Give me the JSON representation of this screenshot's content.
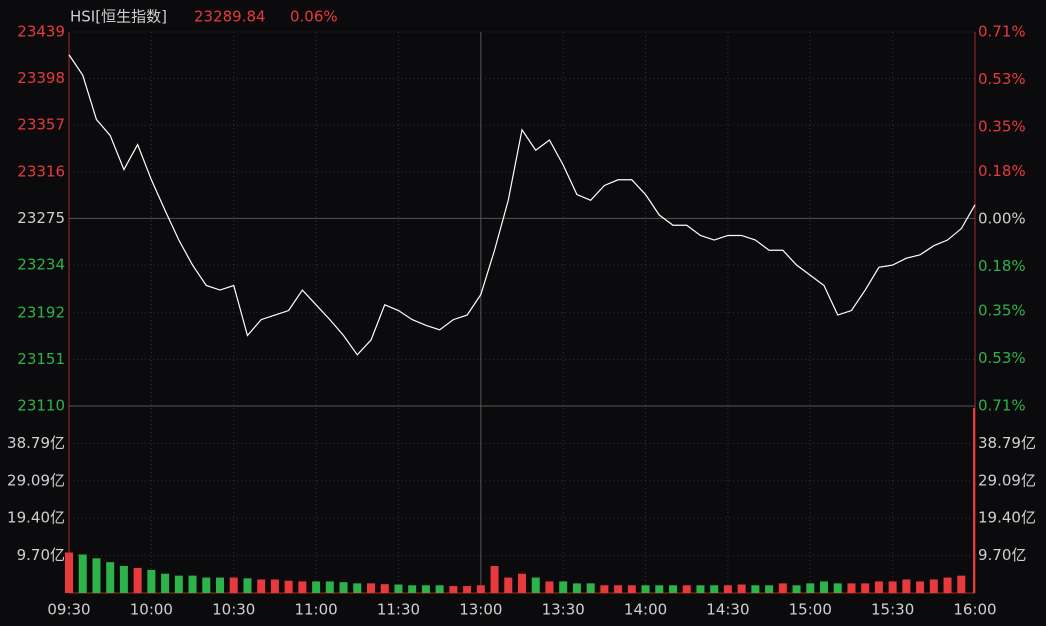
{
  "header": {
    "title": "HSI[恒生指数]",
    "price": 23289.84,
    "change": {
      "value": 0.06,
      "label": "0.06%"
    }
  },
  "chart_data": [
    {
      "type": "line",
      "color": "#ffffff",
      "up_color": "#e8393c",
      "down_color": "#2db34a",
      "x": [
        0,
        5,
        10,
        15,
        20,
        25,
        30,
        35,
        40,
        45,
        50,
        55,
        60,
        65,
        70,
        75,
        80,
        85,
        90,
        95,
        100,
        105,
        110,
        115,
        120,
        125,
        130,
        135,
        140,
        145,
        150,
        155,
        160,
        165,
        170,
        175,
        180,
        185,
        190,
        195,
        200,
        205,
        210,
        215,
        220,
        225,
        230,
        235,
        240,
        245,
        250,
        255,
        260,
        265,
        270,
        275,
        280,
        285,
        290,
        295,
        300,
        305,
        310,
        315,
        320,
        325,
        330
      ],
      "values": [
        23419,
        23401,
        23362,
        23348,
        23318,
        23340,
        23309,
        23282,
        23256,
        23234,
        23216,
        23212,
        23216,
        23172,
        23186,
        23190,
        23194,
        23212,
        23199,
        23186,
        23172,
        23155,
        23168,
        23199,
        23194,
        23186,
        23181,
        23177,
        23186,
        23190,
        23208,
        23247,
        23291,
        23353,
        23335,
        23344,
        23322,
        23296,
        23291,
        23304,
        23309,
        23309,
        23296,
        23278,
        23269,
        23269,
        23260,
        23256,
        23260,
        23260,
        23256,
        23247,
        23247,
        23234,
        23225,
        23216,
        23190,
        23194,
        23212,
        23232,
        23234,
        23240,
        23243,
        23251,
        23256,
        23266,
        23287
      ],
      "xlim": [
        0,
        330
      ],
      "ylim": [
        23110,
        23439
      ],
      "yticks": [
        23439,
        23398,
        23357,
        23316,
        23275,
        23234,
        23192,
        23151,
        23110
      ],
      "y2lim": [
        -0.71,
        0.71
      ],
      "y2ticks": [
        {
          "value": 0.71,
          "label": "0.71%"
        },
        {
          "value": 0.53,
          "label": "0.53%"
        },
        {
          "value": 0.35,
          "label": "0.35%"
        },
        {
          "value": 0.18,
          "label": "0.18%"
        },
        {
          "value": 0,
          "label": "0.00%"
        },
        {
          "value": -0.18,
          "label": "0.18%"
        },
        {
          "value": -0.35,
          "label": "0.35%"
        },
        {
          "value": -0.53,
          "label": "0.53%"
        },
        {
          "value": -0.71,
          "label": "0.71%"
        }
      ],
      "grid": true
    },
    {
      "type": "bar",
      "x": [
        0,
        5,
        10,
        15,
        20,
        25,
        30,
        35,
        40,
        45,
        50,
        55,
        60,
        65,
        70,
        75,
        80,
        85,
        90,
        95,
        100,
        105,
        110,
        115,
        120,
        125,
        130,
        135,
        140,
        145,
        150,
        155,
        160,
        165,
        170,
        175,
        180,
        185,
        190,
        195,
        200,
        205,
        210,
        215,
        220,
        225,
        230,
        235,
        240,
        245,
        250,
        255,
        260,
        265,
        270,
        275,
        280,
        285,
        290,
        295,
        300,
        305,
        310,
        315,
        320,
        325,
        330
      ],
      "values": [
        10.5,
        10,
        9,
        8,
        7,
        6.5,
        6,
        5,
        4.5,
        4.5,
        4,
        4,
        4,
        3.8,
        3.5,
        3.5,
        3.2,
        3,
        3,
        3,
        2.8,
        2.5,
        2.5,
        2.3,
        2.2,
        2,
        2,
        2,
        1.8,
        1.8,
        2,
        7,
        4,
        5,
        4,
        3,
        3,
        2.5,
        2.5,
        2,
        2,
        2,
        2,
        2,
        2,
        2,
        2,
        2,
        2,
        2.2,
        2,
        2,
        2.5,
        2,
        2.5,
        3,
        2.5,
        2.5,
        2.5,
        3,
        3,
        3.5,
        3,
        3.5,
        4,
        4.5,
        48
      ],
      "xlim": [
        0,
        330
      ],
      "ylim": [
        0,
        48.5
      ],
      "yticks": [
        {
          "value": 38.79,
          "label": "38.79亿"
        },
        {
          "value": 29.09,
          "label": "29.09亿"
        },
        {
          "value": 19.4,
          "label": "19.40亿"
        },
        {
          "value": 9.7,
          "label": "9.70亿"
        }
      ],
      "xticks": [
        {
          "value": 0,
          "label": "09:30"
        },
        {
          "value": 30,
          "label": "10:00"
        },
        {
          "value": 60,
          "label": "10:30"
        },
        {
          "value": 90,
          "label": "11:00"
        },
        {
          "value": 120,
          "label": "11:30"
        },
        {
          "value": 150,
          "label": "13:00"
        },
        {
          "value": 180,
          "label": "13:30"
        },
        {
          "value": 210,
          "label": "14:00"
        },
        {
          "value": 240,
          "label": "14:30"
        },
        {
          "value": 270,
          "label": "15:00"
        },
        {
          "value": 300,
          "label": "15:30"
        },
        {
          "value": 330,
          "label": "16:00"
        }
      ],
      "grid": true
    }
  ]
}
